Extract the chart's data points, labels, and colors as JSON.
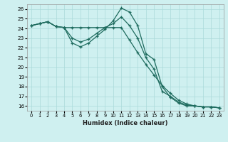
{
  "xlabel": "Humidex (Indice chaleur)",
  "xlim": [
    -0.5,
    23.5
  ],
  "ylim": [
    15.5,
    26.5
  ],
  "xticks": [
    0,
    1,
    2,
    3,
    4,
    5,
    6,
    7,
    8,
    9,
    10,
    11,
    12,
    13,
    14,
    15,
    16,
    17,
    18,
    19,
    20,
    21,
    22,
    23
  ],
  "yticks": [
    16,
    17,
    18,
    19,
    20,
    21,
    22,
    23,
    24,
    25,
    26
  ],
  "bg_color": "#cff0f0",
  "grid_color": "#aadada",
  "line_color": "#1e6b5e",
  "line1_x": [
    0,
    1,
    2,
    3,
    4,
    5,
    6,
    7,
    8,
    9,
    10,
    11,
    12,
    13,
    14,
    15,
    16,
    17,
    18,
    19,
    20,
    21,
    22,
    23
  ],
  "line1_y": [
    24.3,
    24.5,
    24.7,
    24.2,
    24.1,
    22.5,
    22.1,
    22.5,
    23.2,
    23.9,
    24.8,
    26.1,
    25.7,
    24.3,
    21.4,
    20.8,
    18.0,
    16.9,
    16.3,
    16.0,
    16.0,
    15.9,
    15.9,
    15.8
  ],
  "line2_x": [
    0,
    1,
    2,
    3,
    4,
    5,
    6,
    7,
    8,
    9,
    10,
    11,
    12,
    13,
    14,
    15,
    16,
    17,
    18,
    19,
    20,
    21,
    22,
    23
  ],
  "line2_y": [
    24.3,
    24.5,
    24.7,
    24.2,
    24.1,
    24.1,
    24.1,
    24.1,
    24.1,
    24.1,
    24.1,
    24.1,
    22.8,
    21.5,
    20.3,
    19.2,
    18.1,
    17.3,
    16.6,
    16.2,
    16.0,
    15.9,
    15.9,
    15.8
  ],
  "line3_x": [
    0,
    1,
    2,
    3,
    4,
    5,
    6,
    7,
    8,
    9,
    10,
    11,
    12,
    13,
    14,
    15,
    16,
    17,
    18,
    19,
    20,
    21,
    22,
    23
  ],
  "line3_y": [
    24.3,
    24.5,
    24.7,
    24.2,
    24.1,
    23.0,
    22.6,
    22.9,
    23.5,
    24.1,
    24.5,
    25.2,
    24.3,
    23.0,
    21.0,
    19.8,
    17.5,
    17.0,
    16.4,
    16.1,
    16.0,
    15.9,
    15.9,
    15.8
  ]
}
